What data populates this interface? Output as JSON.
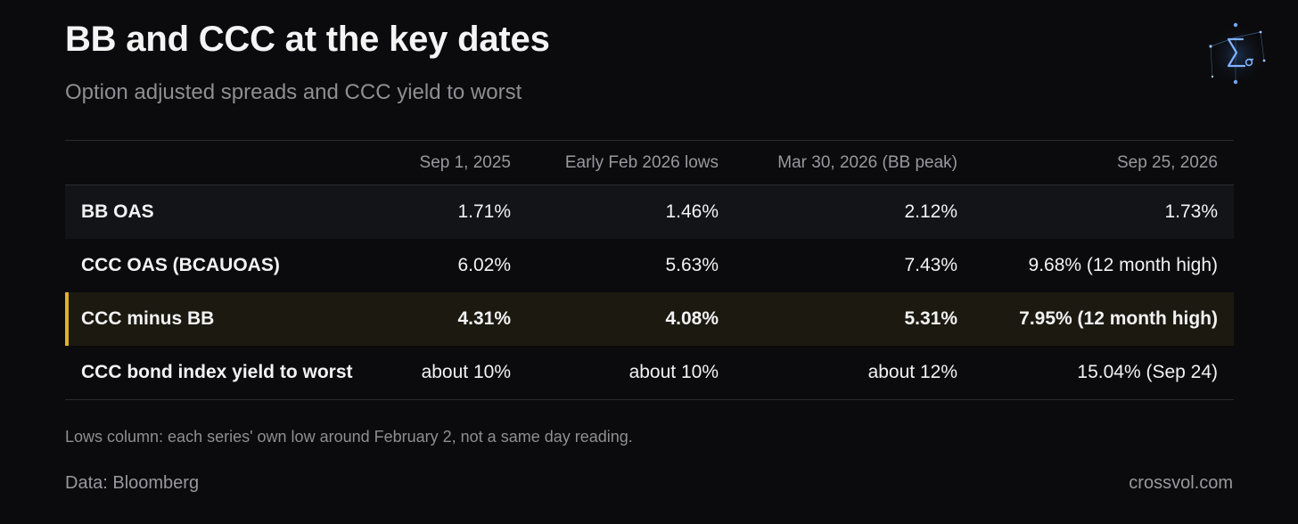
{
  "header": {
    "title": "BB and CCC at the key dates",
    "subtitle": "Option adjusted spreads and CCC yield to worst"
  },
  "logo": {
    "icon": "sigma-network-logo",
    "accent_color": "#6fa8ff"
  },
  "table": {
    "columns": [
      "",
      "Sep 1, 2025",
      "Early Feb 2026 lows",
      "Mar 30, 2026 (BB peak)",
      "Sep 25, 2026"
    ],
    "rows": [
      {
        "label": "BB OAS",
        "values": [
          "1.71%",
          "1.46%",
          "2.12%",
          "1.73%"
        ]
      },
      {
        "label": "CCC OAS (BCAUOAS)",
        "values": [
          "6.02%",
          "5.63%",
          "7.43%",
          "9.68% (12 month high)"
        ]
      },
      {
        "label": "CCC minus BB",
        "values": [
          "4.31%",
          "4.08%",
          "5.31%",
          "7.95% (12 month high)"
        ],
        "highlighted": true
      },
      {
        "label": "CCC bond index yield to worst",
        "values": [
          "about 10%",
          "about 10%",
          "about 12%",
          "15.04% (Sep 24)"
        ]
      }
    ],
    "highlight_color": "#e1b12c"
  },
  "footer": {
    "note": "Lows column: each series' own low around February 2, not a same day reading.",
    "source": "Data: Bloomberg",
    "site": "crossvol.com"
  }
}
